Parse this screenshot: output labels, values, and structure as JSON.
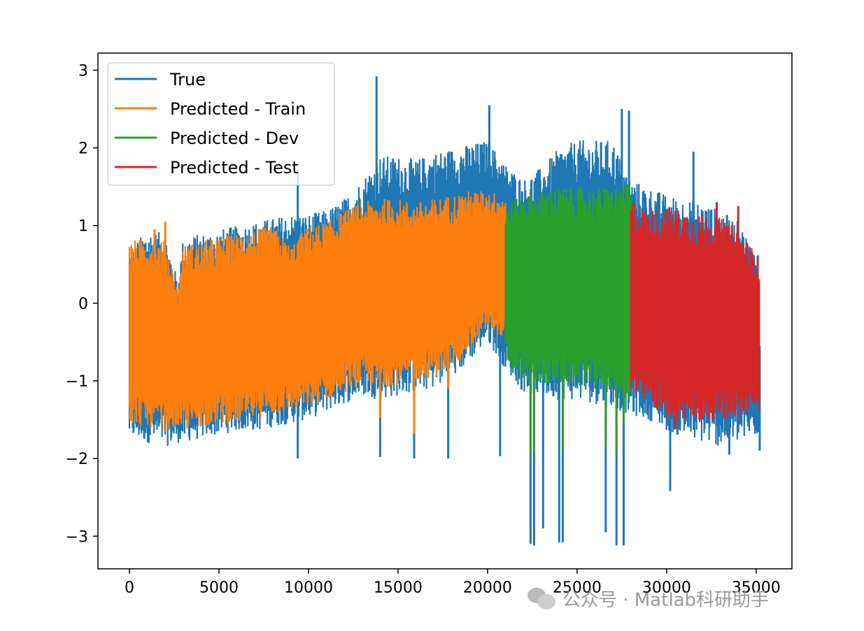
{
  "chart_data": {
    "type": "line",
    "title": "",
    "xlabel": "",
    "ylabel": "",
    "xlim": [
      -1760,
      37000
    ],
    "ylim": [
      -3.42,
      3.22
    ],
    "x_ticks": [
      0,
      5000,
      10000,
      15000,
      20000,
      25000,
      30000,
      35000
    ],
    "x_tick_labels": [
      "0",
      "5000",
      "10000",
      "15000",
      "20000",
      "25000",
      "30000",
      "35000"
    ],
    "y_ticks": [
      -3,
      -2,
      -1,
      0,
      1,
      2,
      3
    ],
    "y_tick_labels": [
      "−3",
      "−2",
      "−1",
      "0",
      "1",
      "2",
      "3"
    ],
    "grid": false,
    "legend_position": "upper-left",
    "series": [
      {
        "name": "True",
        "color": "#1f77b4",
        "x_range": [
          0,
          35200
        ],
        "envelope_x": [
          0,
          1000,
          2000,
          2700,
          3000,
          4000,
          5000,
          6000,
          7000,
          8000,
          9000,
          10000,
          11000,
          12000,
          13000,
          14000,
          15000,
          16000,
          17000,
          18000,
          19000,
          20000,
          21000,
          22000,
          23000,
          24000,
          25000,
          26000,
          27000,
          28000,
          29000,
          30000,
          31000,
          32000,
          33000,
          34000,
          35200
        ],
        "upper": [
          0.7,
          0.95,
          0.9,
          0.3,
          0.85,
          0.9,
          0.95,
          1.0,
          1.05,
          1.1,
          1.15,
          1.15,
          1.2,
          1.35,
          1.6,
          1.9,
          1.9,
          1.85,
          1.95,
          2.0,
          2.05,
          2.1,
          1.8,
          1.6,
          1.75,
          2.0,
          2.1,
          2.1,
          2.1,
          1.6,
          1.5,
          1.4,
          1.35,
          1.3,
          1.2,
          1.05,
          0.6
        ],
        "lower": [
          -1.75,
          -1.8,
          -1.85,
          -1.8,
          -1.8,
          -1.75,
          -1.7,
          -1.65,
          -1.65,
          -1.6,
          -1.55,
          -1.5,
          -1.4,
          -1.3,
          -1.2,
          -1.25,
          -1.2,
          -1.15,
          -1.1,
          -1.0,
          -0.75,
          -0.5,
          -0.85,
          -1.15,
          -1.2,
          -1.25,
          -1.25,
          -1.3,
          -1.35,
          -1.45,
          -1.5,
          -1.65,
          -1.75,
          -1.8,
          -1.85,
          -1.8,
          -1.7
        ],
        "spikes": [
          [
            9400,
            1.72
          ],
          [
            9400,
            -2.0
          ],
          [
            13800,
            2.92
          ],
          [
            14000,
            -1.98
          ],
          [
            15900,
            -2.0
          ],
          [
            17800,
            -2.0
          ],
          [
            20100,
            2.55
          ],
          [
            20700,
            -1.97
          ],
          [
            22400,
            -3.1
          ],
          [
            22600,
            -3.12
          ],
          [
            23100,
            -2.9
          ],
          [
            24000,
            -3.08
          ],
          [
            24200,
            -3.08
          ],
          [
            26600,
            -2.95
          ],
          [
            27200,
            -3.12
          ],
          [
            27600,
            -3.12
          ],
          [
            27900,
            2.48
          ],
          [
            27500,
            2.5
          ],
          [
            30200,
            -2.42
          ],
          [
            31500,
            1.95
          ],
          [
            33500,
            -1.95
          ],
          [
            35200,
            -1.9
          ]
        ]
      },
      {
        "name": "Predicted - Train",
        "color": "#ff7f0e",
        "x_range": [
          0,
          21000
        ],
        "envelope_x": [
          0,
          1000,
          2000,
          2700,
          3000,
          4000,
          5000,
          6000,
          7000,
          8000,
          9000,
          10000,
          11000,
          12000,
          13000,
          14000,
          15000,
          16000,
          17000,
          18000,
          19000,
          20000,
          21000
        ],
        "upper": [
          0.8,
          0.85,
          0.8,
          0.2,
          0.75,
          0.8,
          0.85,
          0.9,
          0.95,
          1.0,
          0.75,
          1.0,
          1.05,
          1.2,
          1.3,
          1.35,
          1.35,
          1.3,
          1.35,
          1.4,
          1.45,
          1.45,
          1.4
        ],
        "lower": [
          -1.55,
          -1.6,
          -1.65,
          -1.6,
          -1.65,
          -1.6,
          -1.55,
          -1.55,
          -1.5,
          -1.45,
          -1.4,
          -1.35,
          -1.25,
          -1.15,
          -1.05,
          -1.1,
          -1.05,
          -1.0,
          -0.95,
          -0.85,
          -0.6,
          -0.35,
          -0.45
        ],
        "spikes": [
          [
            14000,
            -1.48
          ],
          [
            15900,
            -1.68
          ],
          [
            17800,
            -1.1
          ],
          [
            1400,
            0.95
          ],
          [
            2000,
            1.05
          ]
        ]
      },
      {
        "name": "Predicted - Dev",
        "color": "#2ca02c",
        "x_range": [
          21000,
          28000
        ],
        "envelope_x": [
          21000,
          22000,
          23000,
          24000,
          25000,
          26000,
          27000,
          28000
        ],
        "upper": [
          1.25,
          1.4,
          1.45,
          1.5,
          1.5,
          1.5,
          1.5,
          1.55
        ],
        "lower": [
          -0.8,
          -1.0,
          -1.05,
          -1.05,
          -1.05,
          -1.1,
          -1.1,
          -1.3
        ],
        "spikes": [
          [
            22400,
            -1.95
          ],
          [
            22600,
            -1.9
          ],
          [
            24200,
            -1.9
          ],
          [
            26600,
            -1.85
          ],
          [
            27200,
            -1.95
          ],
          [
            27600,
            -1.55
          ]
        ]
      },
      {
        "name": "Predicted - Test",
        "color": "#d62728",
        "x_range": [
          28000,
          35200
        ],
        "envelope_x": [
          28000,
          29000,
          30000,
          31000,
          32000,
          33000,
          34000,
          35200
        ],
        "upper": [
          1.35,
          1.2,
          1.25,
          1.2,
          1.15,
          1.1,
          0.95,
          0.6
        ],
        "lower": [
          -1.25,
          -1.3,
          -1.5,
          -1.55,
          -1.55,
          -1.5,
          -1.5,
          -1.4
        ],
        "spikes": [
          [
            30500,
            -1.62
          ],
          [
            32800,
            1.3
          ],
          [
            34000,
            1.25
          ]
        ]
      }
    ]
  },
  "watermark": {
    "text": "公众号 · Matlab科研助手"
  }
}
